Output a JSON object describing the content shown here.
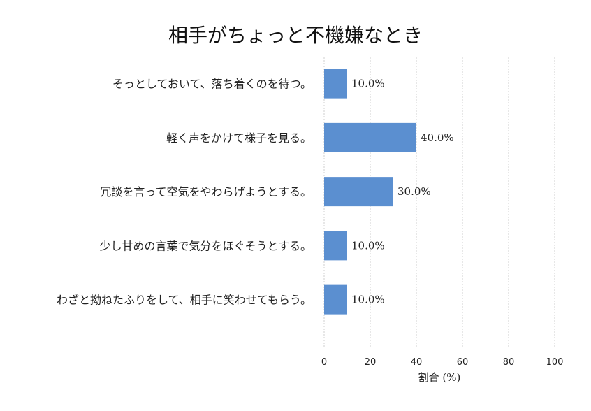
{
  "chart_data": {
    "type": "bar",
    "orientation": "horizontal",
    "title": "相手がちょっと不機嫌なとき",
    "xlabel": "割合 (%)",
    "ylabel": "",
    "categories": [
      "そっとしておいて、落ち着くのを待つ。",
      "軽く声をかけて様子を見る。",
      "冗談を言って空気をやわらげようとする。",
      "少し甘めの言葉で気分をほぐそうとする。",
      "わざと拗ねたふりをして、相手に笑わせてもらう。"
    ],
    "values": [
      10,
      40,
      30,
      10,
      10
    ],
    "value_labels": [
      "10.0%",
      "40.0%",
      "30.0%",
      "10.0%",
      "10.0%"
    ],
    "xlim": [
      0,
      100
    ],
    "xticks": [
      0,
      20,
      40,
      60,
      80,
      100
    ],
    "grid": "x-dashed",
    "bar_color": "#5b8fd0"
  }
}
